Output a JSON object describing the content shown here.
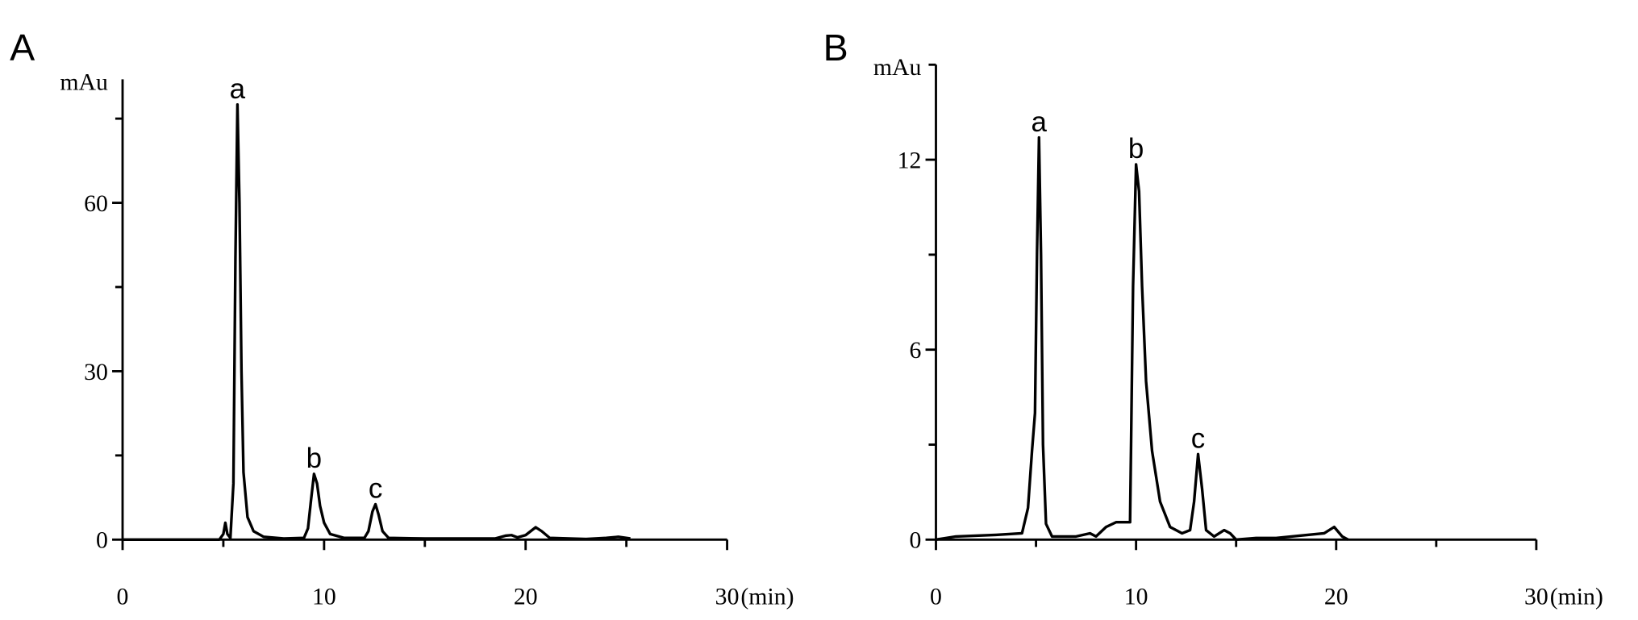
{
  "chart_data": [
    {
      "type": "line",
      "label": "A",
      "ylabel": "mAu",
      "xlabel": "(min)",
      "x": [
        0,
        4.8,
        5.0,
        5.1,
        5.2,
        5.35,
        5.5,
        5.6,
        5.7,
        5.8,
        5.9,
        6.0,
        6.2,
        6.5,
        7,
        8,
        9.0,
        9.2,
        9.35,
        9.5,
        9.65,
        9.8,
        10,
        10.3,
        11,
        12.0,
        12.2,
        12.4,
        12.55,
        12.7,
        12.9,
        13.2,
        15,
        18.5,
        19.0,
        19.3,
        19.6,
        20.0,
        20.5,
        20.8,
        21.2,
        23,
        24,
        24.6,
        25.2
      ],
      "series": [
        {
          "color": "#000000",
          "values": [
            0,
            0,
            1,
            3,
            1,
            0.3,
            10,
            50,
            77.5,
            60,
            30,
            12,
            4,
            1.5,
            0.5,
            0.2,
            0.3,
            2,
            7,
            11.7,
            10,
            6,
            3,
            1,
            0.3,
            0.3,
            1.5,
            5,
            6.3,
            4.5,
            1.5,
            0.3,
            0.2,
            0.2,
            0.7,
            0.8,
            0.4,
            0.8,
            2.2,
            1.5,
            0.3,
            0.1,
            0.3,
            0.5,
            0.2
          ]
        }
      ],
      "xlim": [
        0,
        30
      ],
      "ylim": [
        0,
        82
      ],
      "xticks": [
        0,
        10,
        20,
        30
      ],
      "xticks_minor": [
        5,
        15,
        25
      ],
      "yticks": [
        0,
        30,
        60
      ],
      "yticks_minor": [
        15,
        45,
        75
      ],
      "annotations": [
        {
          "text": "a",
          "x": 5.7,
          "y": 77.5
        },
        {
          "text": "b",
          "x": 9.5,
          "y": 11.7
        },
        {
          "text": "c",
          "x": 12.55,
          "y": 6.3
        }
      ]
    },
    {
      "type": "line",
      "label": "B",
      "ylabel": "mAu",
      "xlabel": "(min)",
      "x": [
        0,
        1,
        3,
        4.3,
        4.6,
        4.8,
        4.95,
        5.05,
        5.15,
        5.25,
        5.35,
        5.5,
        5.8,
        7,
        7.7,
        8,
        8.5,
        9,
        9.7,
        9.75,
        9.85,
        10.0,
        10.15,
        10.3,
        10.5,
        10.8,
        11.2,
        11.7,
        12.3,
        12.7,
        12.9,
        13.1,
        13.3,
        13.5,
        13.9,
        14.4,
        14.7,
        15,
        16,
        17,
        19.4,
        19.9,
        20.3,
        20.6
      ],
      "series": [
        {
          "color": "#000000",
          "values": [
            0,
            0.1,
            0.15,
            0.2,
            1,
            2.8,
            4,
            9,
            12.7,
            9,
            3,
            0.5,
            0.1,
            0.1,
            0.2,
            0.1,
            0.4,
            0.55,
            0.55,
            3,
            8,
            11.85,
            11,
            8,
            5,
            2.8,
            1.2,
            0.4,
            0.2,
            0.3,
            1.2,
            2.7,
            1.6,
            0.3,
            0.1,
            0.3,
            0.2,
            0,
            0.05,
            0.05,
            0.2,
            0.4,
            0.1,
            0
          ]
        }
      ],
      "xlim": [
        0,
        30
      ],
      "ylim": [
        0,
        15
      ],
      "xticks": [
        0,
        10,
        20,
        30
      ],
      "xticks_minor": [
        5,
        15,
        25
      ],
      "yticks": [
        0,
        6,
        12
      ],
      "yticks_minor": [
        3,
        9,
        15
      ],
      "annotations": [
        {
          "text": "a",
          "x": 5.15,
          "y": 12.7
        },
        {
          "text": "b",
          "x": 10.0,
          "y": 11.85
        },
        {
          "text": "c",
          "x": 13.1,
          "y": 2.7
        }
      ]
    }
  ]
}
